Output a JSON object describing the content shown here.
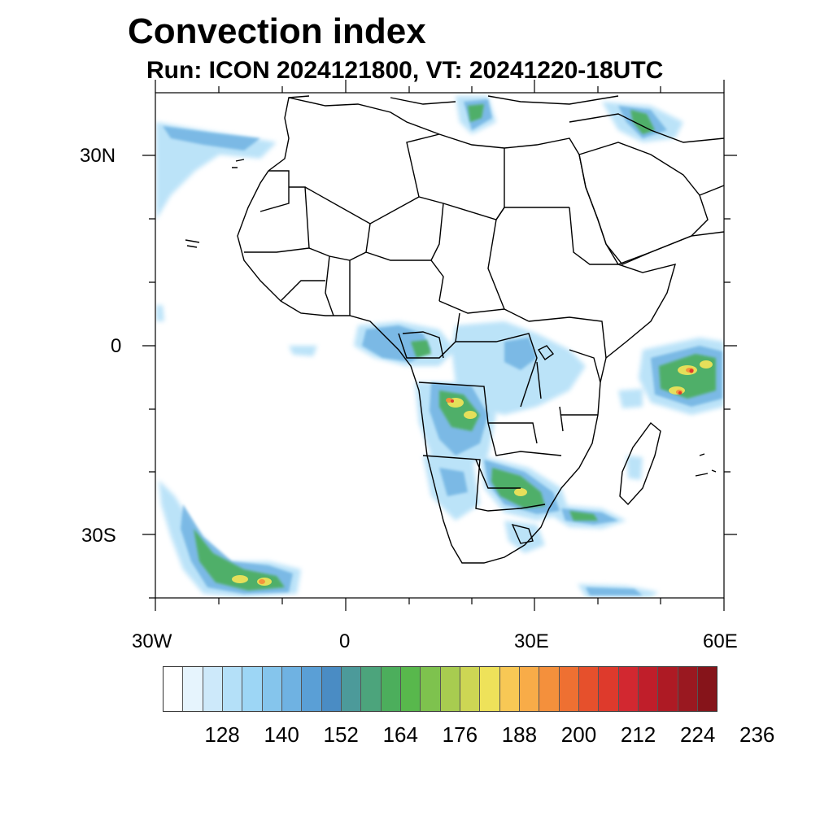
{
  "title": "Convection index",
  "subtitle": "Run: ICON 2024121800,  VT: 20241220-18UTC",
  "axes": {
    "y_labels": [
      {
        "text": "30N",
        "lat": 30
      },
      {
        "text": "0",
        "lat": 0
      },
      {
        "text": "30S",
        "lat": -30
      }
    ],
    "x_labels": [
      {
        "text": "30W",
        "lon": -30
      },
      {
        "text": "0",
        "lon": 0
      },
      {
        "text": "30E",
        "lon": 30
      },
      {
        "text": "60E",
        "lon": 60
      }
    ],
    "lon_range": [
      -30,
      60
    ],
    "lat_range": [
      -40,
      40
    ]
  },
  "colorbar": {
    "colors": [
      "#ffffff",
      "#e6f4fd",
      "#cde9fa",
      "#b4e0f8",
      "#9dd6f5",
      "#85c5ec",
      "#6fb2e2",
      "#5a9fd6",
      "#4a8cc4",
      "#4c9a9a",
      "#4ca47c",
      "#4cae5c",
      "#58b84c",
      "#7ec24e",
      "#a8cc50",
      "#cdd654",
      "#eee25a",
      "#f8c855",
      "#f8ac48",
      "#f4903c",
      "#ee7032",
      "#e6502c",
      "#de3a2c",
      "#d22830",
      "#c01e2a",
      "#ae1a24",
      "#9a1820",
      "#86141a"
    ],
    "labels": [
      "128",
      "140",
      "152",
      "164",
      "176",
      "188",
      "200",
      "212",
      "224",
      "236"
    ]
  },
  "colors": {
    "coastline": "#000000",
    "light_blue": "#b4e0f8",
    "mid_blue": "#6fb2e2",
    "green": "#4cae5c",
    "yellow": "#eee25a",
    "red": "#de3a2c"
  }
}
